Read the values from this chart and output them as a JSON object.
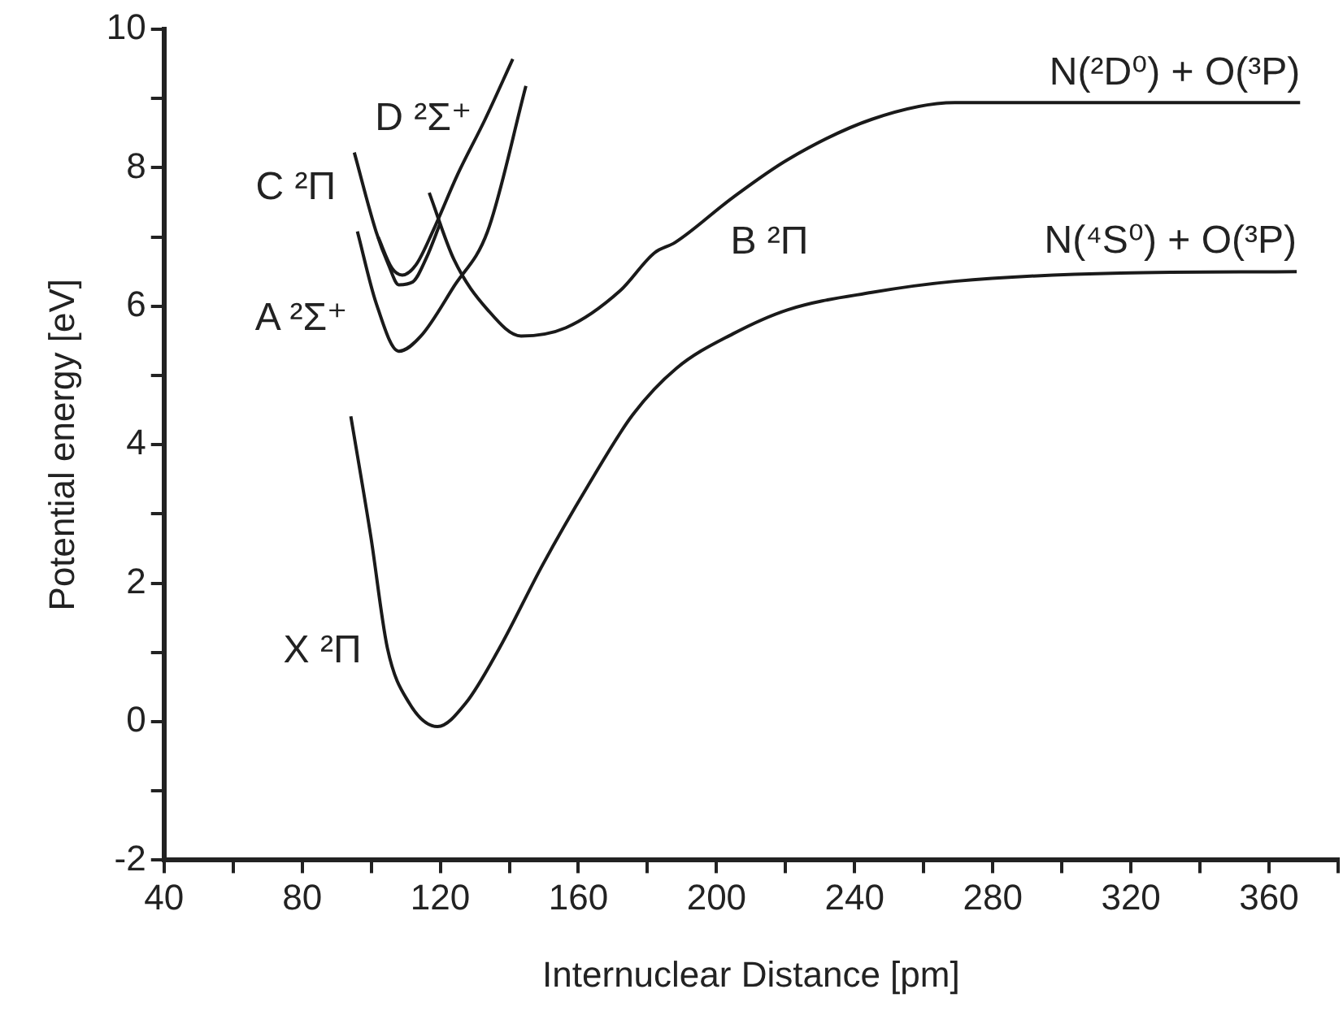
{
  "chart_data": {
    "type": "line",
    "xlabel": "Internuclear Distance [pm]",
    "ylabel": "Potential energy [eV]",
    "xlim": [
      40,
      380
    ],
    "ylim": [
      -2,
      10
    ],
    "xticks": [
      40,
      {
        "value": 60,
        "label": null
      },
      80,
      {
        "value": 100,
        "label": null
      },
      120,
      {
        "value": 140,
        "label": null
      },
      160,
      {
        "value": 180,
        "label": null
      },
      200,
      {
        "value": 220,
        "label": null
      },
      240,
      {
        "value": 260,
        "label": null
      },
      280,
      {
        "value": 300,
        "label": null
      },
      320,
      {
        "value": 340,
        "label": null
      },
      360,
      {
        "value": 380,
        "label": null
      }
    ],
    "yticks": [
      -2,
      {
        "value": -1,
        "label": null
      },
      0,
      {
        "value": 1,
        "label": null
      },
      2,
      {
        "value": 3,
        "label": null
      },
      4,
      {
        "value": 5,
        "label": null
      },
      6,
      {
        "value": 7,
        "label": null
      },
      8,
      {
        "value": 9,
        "label": null
      },
      10
    ],
    "grid": false,
    "legend": false,
    "marker": "none",
    "line_style": "solid",
    "series": [
      {
        "name": "X ²Π",
        "color": "#1a1a1a",
        "x": [
          94.1,
          99.9,
          104.7,
          111,
          119.2,
          127.4,
          137.1,
          149.7,
          162.7,
          175.7,
          188.3,
          204.7,
          220.7,
          245,
          269,
          317,
          368
        ],
        "values": [
          4.41,
          2.67,
          1.06,
          0.27,
          -0.07,
          0.27,
          1.06,
          2.27,
          3.4,
          4.43,
          5.1,
          5.6,
          5.95,
          6.2,
          6.36,
          6.48,
          6.5
        ]
      },
      {
        "name": "B ²Π",
        "color": "#1a1a1a",
        "x": [
          116.8,
          124,
          133.7,
          143.4,
          156.4,
          172,
          182,
          188,
          204.7,
          220.7,
          245,
          269,
          320,
          369
        ],
        "values": [
          7.64,
          6.67,
          5.95,
          5.57,
          5.69,
          6.22,
          6.77,
          6.92,
          7.57,
          8.12,
          8.7,
          8.94,
          8.94,
          8.94
        ]
      },
      {
        "name": "A ²Σ⁺",
        "color": "#1a1a1a",
        "x": [
          96,
          101.4,
          108,
          114.4,
          124,
          133.7,
          144.8
        ],
        "values": [
          7.08,
          6.05,
          5.35,
          5.57,
          6.29,
          7.08,
          9.18
        ]
      },
      {
        "name": "C ²Π",
        "color": "#1a1a1a",
        "x": [
          95.1,
          101.4,
          105,
          108,
          112,
          116,
          120
        ],
        "values": [
          8.22,
          7.08,
          6.6,
          6.31,
          6.35,
          6.7,
          7.2
        ]
      },
      {
        "name": "D ²Σ⁺",
        "color": "#1a1a1a",
        "x": [
          102,
          106,
          109,
          113,
          118,
          125,
          133,
          141
        ],
        "values": [
          7,
          6.55,
          6.45,
          6.6,
          7.1,
          7.9,
          8.7,
          9.57
        ]
      }
    ],
    "annotations": [
      {
        "text": "N(²D⁰) + O(³P)",
        "x": 369,
        "y": 8.94
      },
      {
        "text": "N(⁴S⁰) + O(³P)",
        "x": 368,
        "y": 6.5
      }
    ]
  }
}
